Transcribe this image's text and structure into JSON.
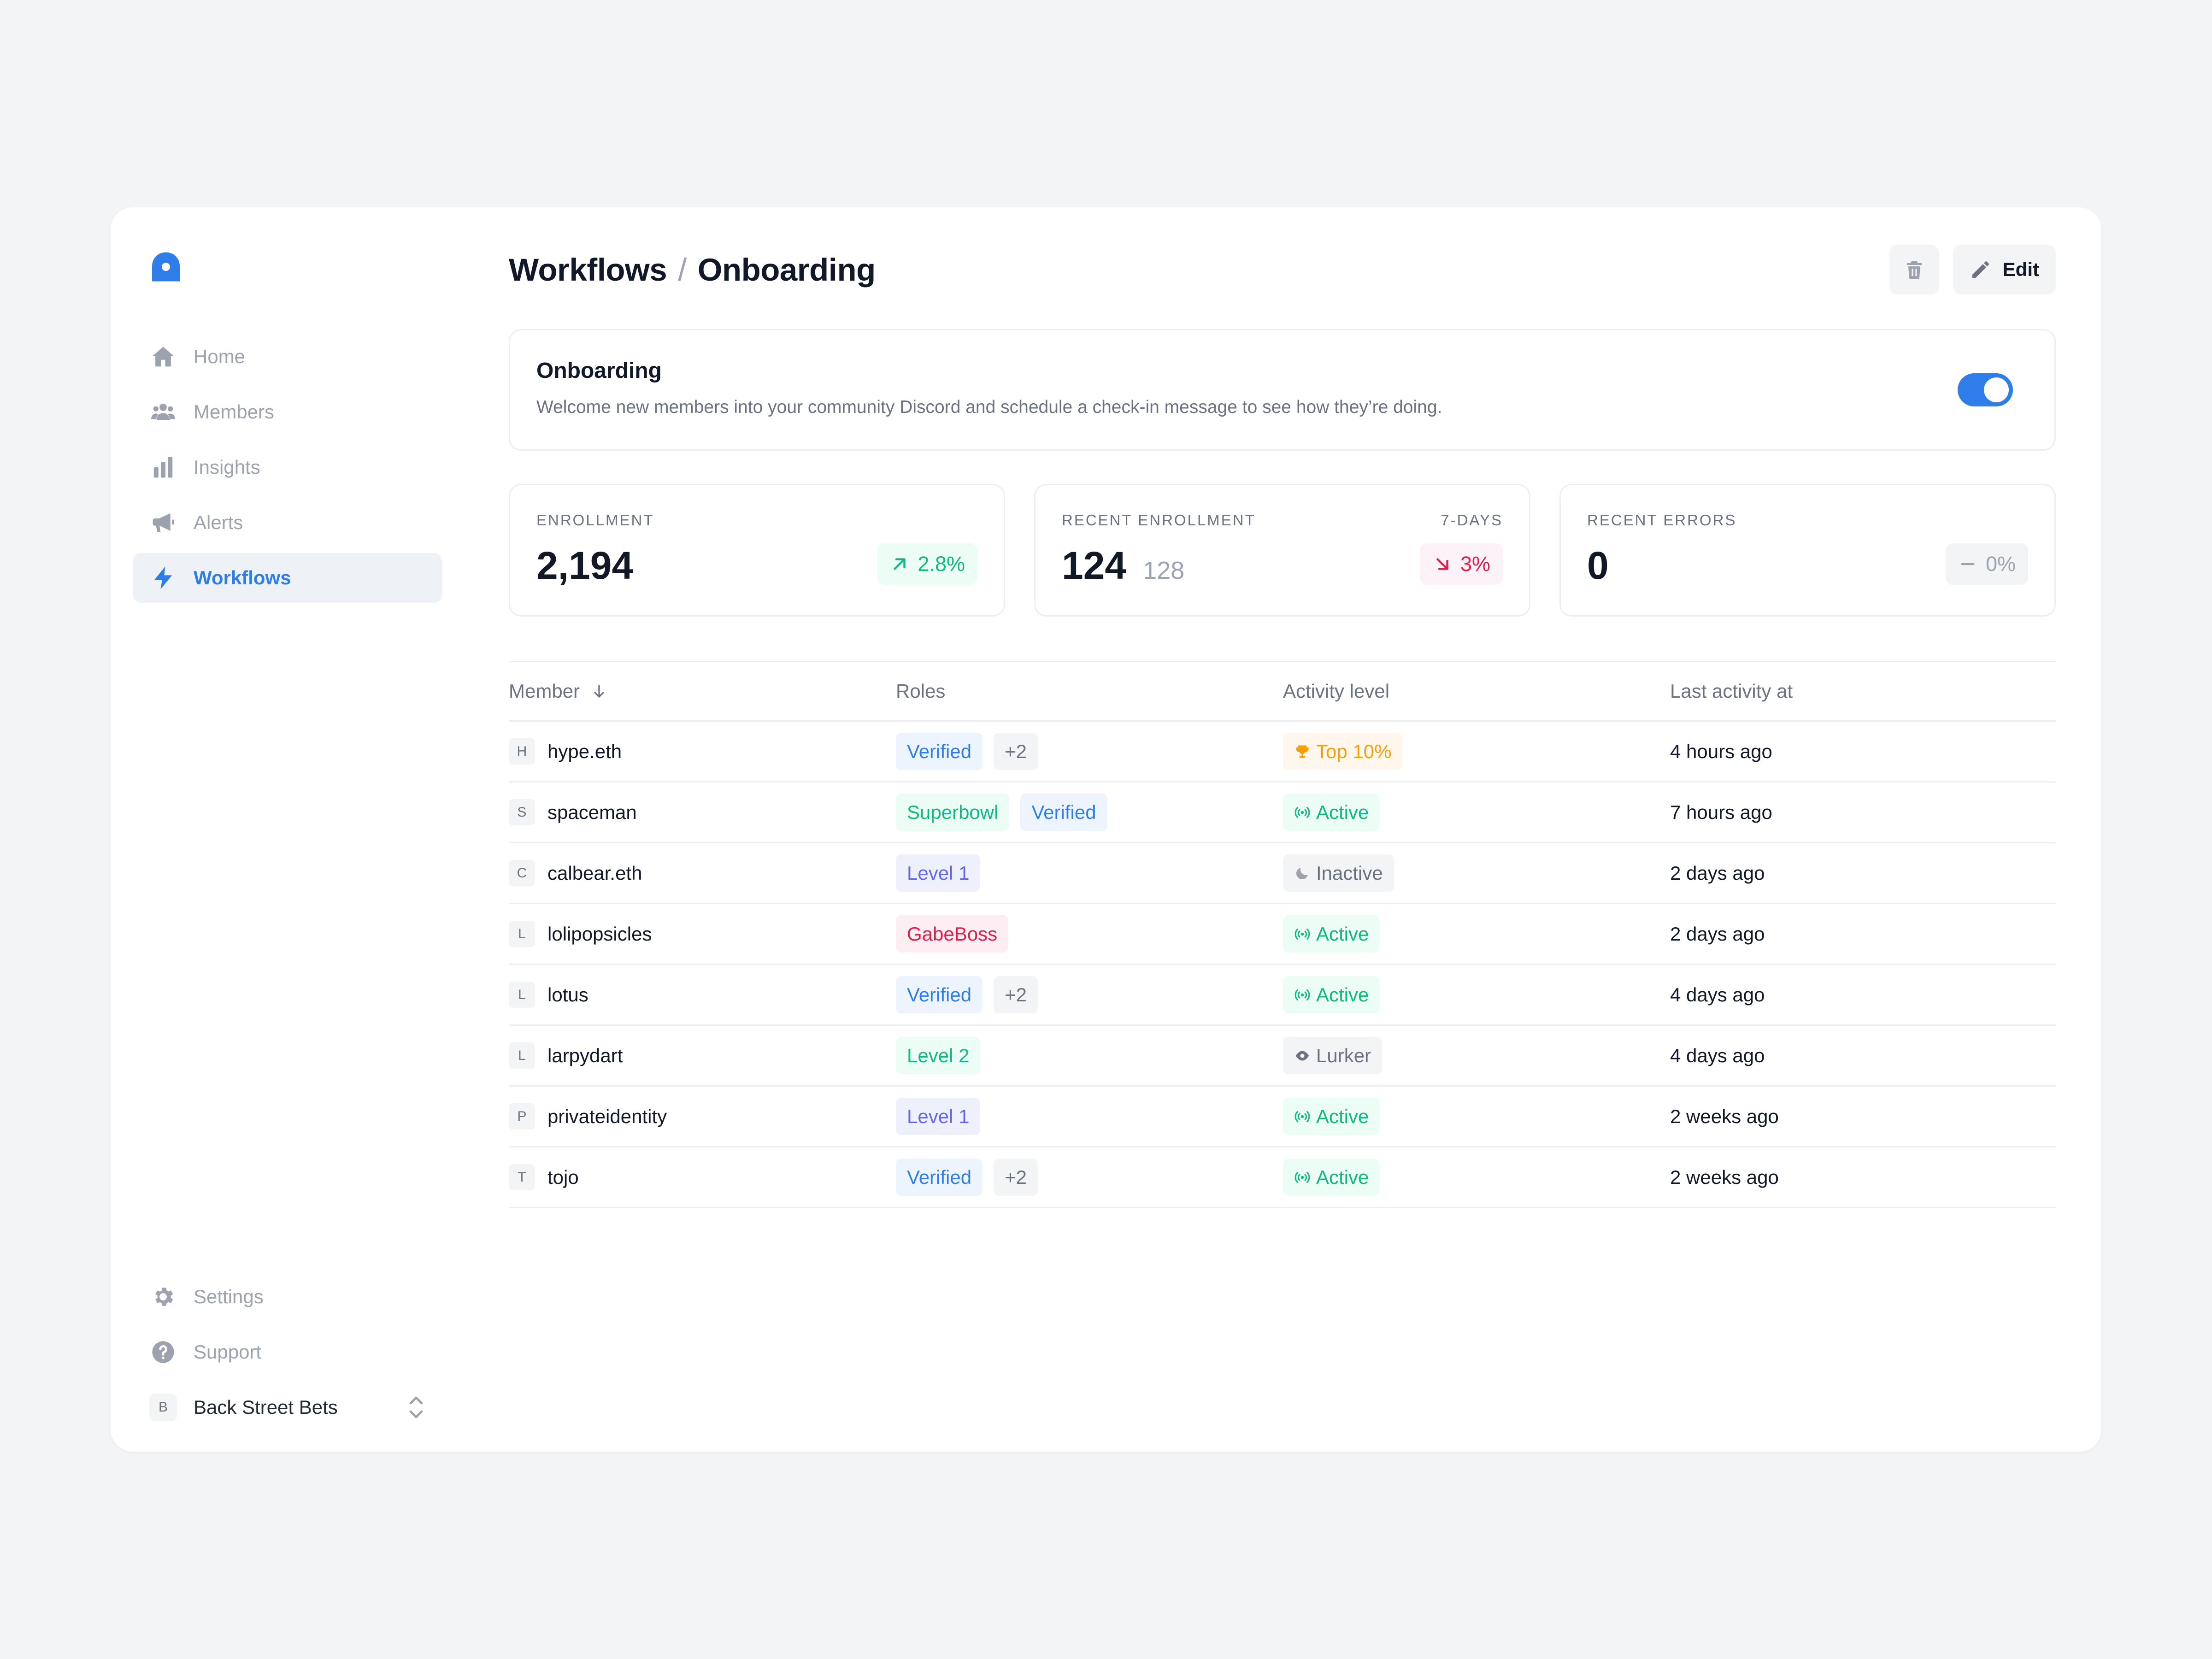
{
  "sidebar": {
    "items": [
      {
        "label": "Home",
        "icon": "home-icon"
      },
      {
        "label": "Members",
        "icon": "members-icon"
      },
      {
        "label": "Insights",
        "icon": "bar-chart-icon"
      },
      {
        "label": "Alerts",
        "icon": "megaphone-icon"
      },
      {
        "label": "Workflows",
        "icon": "lightning-icon",
        "active": true
      }
    ],
    "bottom": [
      {
        "label": "Settings",
        "icon": "gear-icon"
      },
      {
        "label": "Support",
        "icon": "question-icon"
      }
    ],
    "org": {
      "initial": "B",
      "name": "Back Street Bets"
    }
  },
  "header": {
    "crumb_parent": "Workflows",
    "crumb_sep": "/",
    "crumb_current": "Onboarding",
    "edit_label": "Edit"
  },
  "workflow": {
    "title": "Onboarding",
    "description": "Welcome new members into your community Discord and schedule a check-in message to see how they’re doing.",
    "enabled": true
  },
  "stats": [
    {
      "label": "ENROLLMENT",
      "value": "2,194",
      "delta": "2.8%",
      "trend": "up"
    },
    {
      "label": "RECENT ENROLLMENT",
      "label_right": "7-DAYS",
      "value": "124",
      "sub": "128",
      "delta": "3%",
      "trend": "down"
    },
    {
      "label": "RECENT ERRORS",
      "value": "0",
      "delta": "0%",
      "trend": "flat"
    }
  ],
  "table": {
    "headers": [
      "Member",
      "Roles",
      "Activity level",
      "Last activity at"
    ],
    "rows": [
      {
        "initial": "H",
        "member": "hype.eth",
        "roles": [
          {
            "text": "Verified",
            "color": "blue"
          },
          {
            "text": "+2",
            "color": "gray"
          }
        ],
        "activity": "Top 10%",
        "activity_kind": "top",
        "last": "4 hours ago"
      },
      {
        "initial": "S",
        "member": "spaceman",
        "roles": [
          {
            "text": "Superbowl",
            "color": "green"
          },
          {
            "text": "Verified",
            "color": "blue"
          }
        ],
        "activity": "Active",
        "activity_kind": "active",
        "last": "7 hours ago"
      },
      {
        "initial": "C",
        "member": "calbear.eth",
        "roles": [
          {
            "text": "Level 1",
            "color": "purple"
          }
        ],
        "activity": "Inactive",
        "activity_kind": "inactive",
        "last": "2 days ago"
      },
      {
        "initial": "L",
        "member": "lolipopsicles",
        "roles": [
          {
            "text": "GabeBoss",
            "color": "pink"
          }
        ],
        "activity": "Active",
        "activity_kind": "active",
        "last": "2 days ago"
      },
      {
        "initial": "L",
        "member": "lotus",
        "roles": [
          {
            "text": "Verified",
            "color": "blue"
          },
          {
            "text": "+2",
            "color": "gray"
          }
        ],
        "activity": "Active",
        "activity_kind": "active",
        "last": "4 days ago"
      },
      {
        "initial": "L",
        "member": "larpydart",
        "roles": [
          {
            "text": "Level 2",
            "color": "green"
          }
        ],
        "activity": "Lurker",
        "activity_kind": "lurker",
        "last": "4 days ago"
      },
      {
        "initial": "P",
        "member": "privateidentity",
        "roles": [
          {
            "text": "Level 1",
            "color": "purple"
          }
        ],
        "activity": "Active",
        "activity_kind": "active",
        "last": "2 weeks ago"
      },
      {
        "initial": "T",
        "member": "tojo",
        "roles": [
          {
            "text": "Verified",
            "color": "blue"
          },
          {
            "text": "+2",
            "color": "gray"
          }
        ],
        "activity": "Active",
        "activity_kind": "active",
        "last": "2 weeks ago"
      }
    ]
  },
  "colors": {
    "accent": "#2e7de8",
    "up": "#10b981",
    "down": "#e11d48",
    "top": "#f59e0b"
  }
}
